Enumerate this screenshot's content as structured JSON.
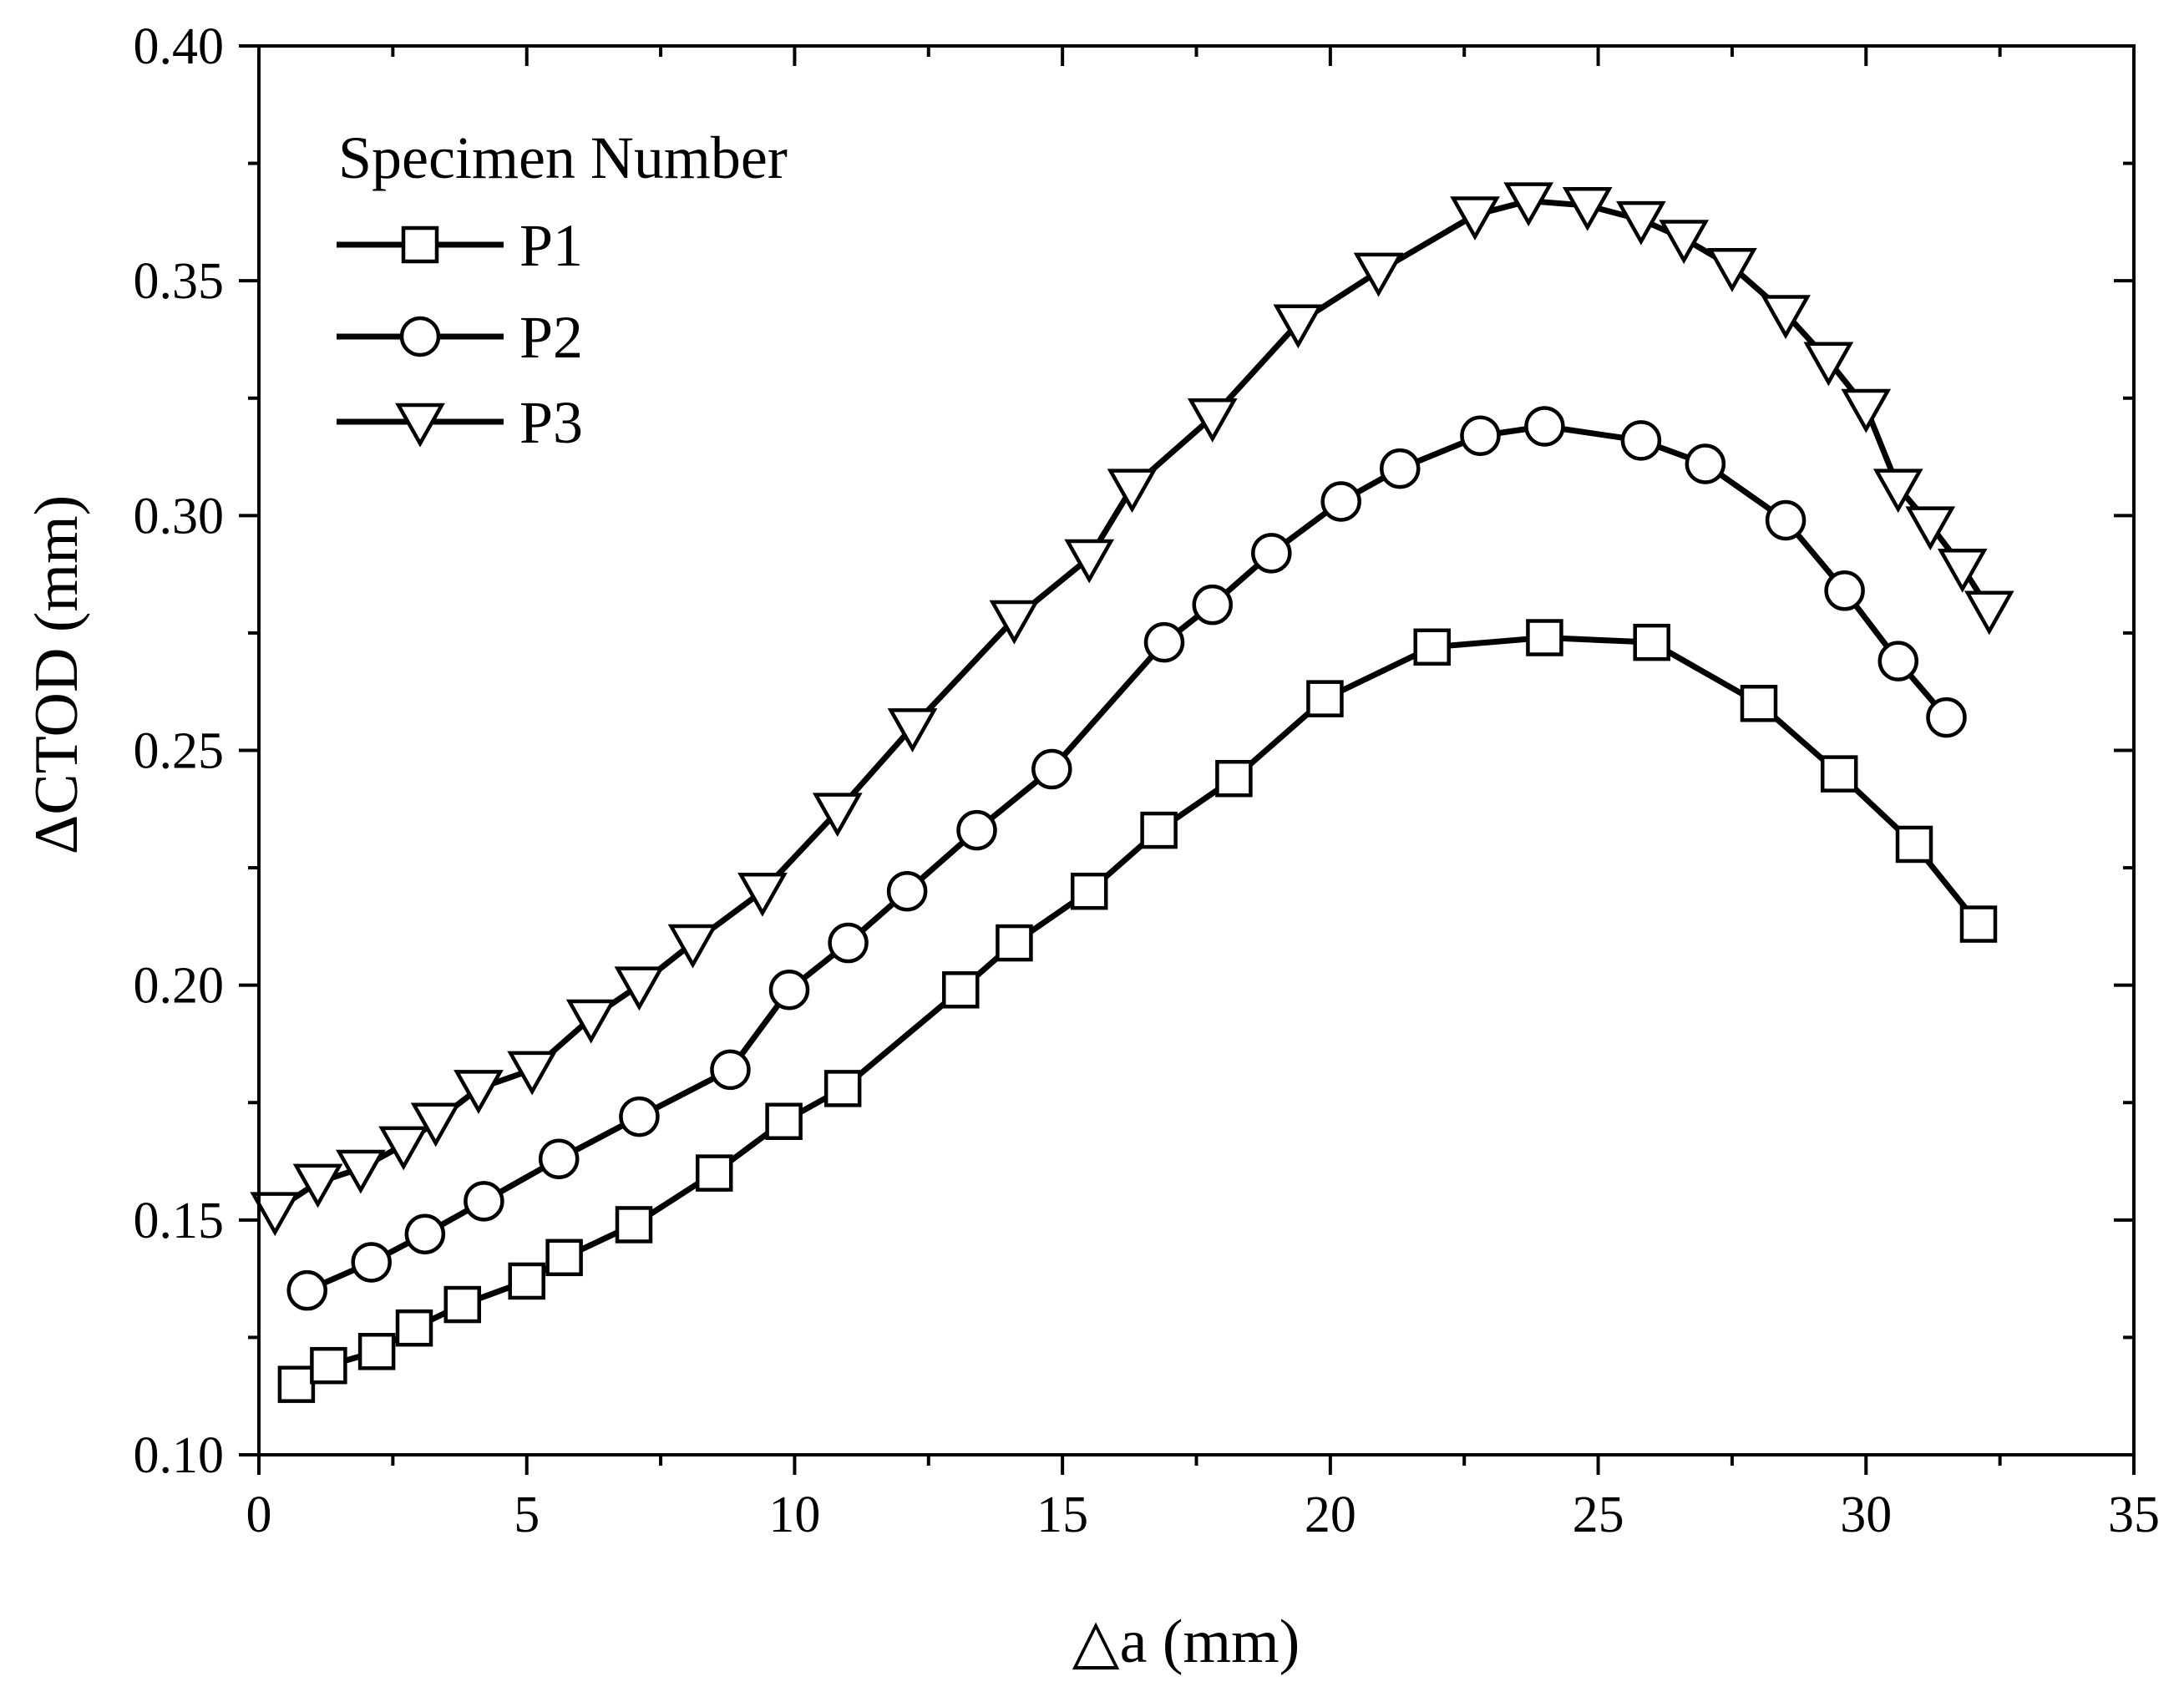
{
  "chart_data": {
    "type": "line",
    "title": "",
    "xlabel": "△a (mm)",
    "ylabel": "ΔCTOD (mm)",
    "xlim": [
      0,
      35
    ],
    "ylim": [
      0.1,
      0.4
    ],
    "x_ticks": [
      "0",
      "5",
      "10",
      "15",
      "20",
      "25",
      "30",
      "35"
    ],
    "y_ticks": [
      "0.10",
      "0.15",
      "0.20",
      "0.25",
      "0.30",
      "0.35",
      "0.40"
    ],
    "legend": {
      "title": "Specimen Number",
      "placement": "top-left"
    },
    "series": [
      {
        "name": "P1",
        "marker": "square",
        "x": [
          0.7,
          1.3,
          2.2,
          2.9,
          3.8,
          5.0,
          5.7,
          7.0,
          8.5,
          9.8,
          10.9,
          13.1,
          14.1,
          15.5,
          16.8,
          18.2,
          19.9,
          21.9,
          24.0,
          26.0,
          28.0,
          29.5,
          30.9,
          32.1
        ],
        "y": [
          0.115,
          0.119,
          0.122,
          0.127,
          0.132,
          0.137,
          0.142,
          0.149,
          0.16,
          0.171,
          0.178,
          0.199,
          0.209,
          0.22,
          0.233,
          0.244,
          0.261,
          0.272,
          0.274,
          0.273,
          0.26,
          0.245,
          0.23,
          0.213
        ]
      },
      {
        "name": "P2",
        "marker": "circle",
        "x": [
          0.9,
          2.1,
          3.1,
          4.2,
          5.6,
          7.1,
          8.8,
          9.9,
          11.0,
          12.1,
          13.4,
          14.8,
          16.9,
          17.8,
          18.9,
          20.2,
          21.3,
          22.8,
          24.0,
          25.8,
          27.0,
          28.5,
          29.6,
          30.6,
          31.5
        ],
        "y": [
          0.135,
          0.141,
          0.147,
          0.154,
          0.163,
          0.172,
          0.182,
          0.199,
          0.209,
          0.22,
          0.233,
          0.246,
          0.273,
          0.281,
          0.292,
          0.303,
          0.31,
          0.317,
          0.319,
          0.316,
          0.311,
          0.299,
          0.284,
          0.269,
          0.257
        ]
      },
      {
        "name": "P3",
        "marker": "triangle-down",
        "x": [
          0.3,
          1.1,
          1.9,
          2.7,
          3.3,
          4.1,
          5.1,
          6.2,
          7.1,
          8.1,
          9.4,
          10.8,
          12.2,
          14.1,
          15.5,
          16.3,
          17.8,
          19.4,
          20.9,
          22.7,
          23.7,
          24.8,
          25.8,
          26.6,
          27.5,
          28.5,
          29.3,
          30.0,
          30.6,
          31.2,
          31.8,
          32.3
        ],
        "y": [
          0.152,
          0.158,
          0.161,
          0.166,
          0.171,
          0.178,
          0.182,
          0.193,
          0.2,
          0.209,
          0.22,
          0.237,
          0.255,
          0.278,
          0.291,
          0.306,
          0.321,
          0.341,
          0.352,
          0.364,
          0.367,
          0.366,
          0.363,
          0.359,
          0.353,
          0.343,
          0.333,
          0.323,
          0.306,
          0.298,
          0.289,
          0.28
        ]
      }
    ]
  }
}
